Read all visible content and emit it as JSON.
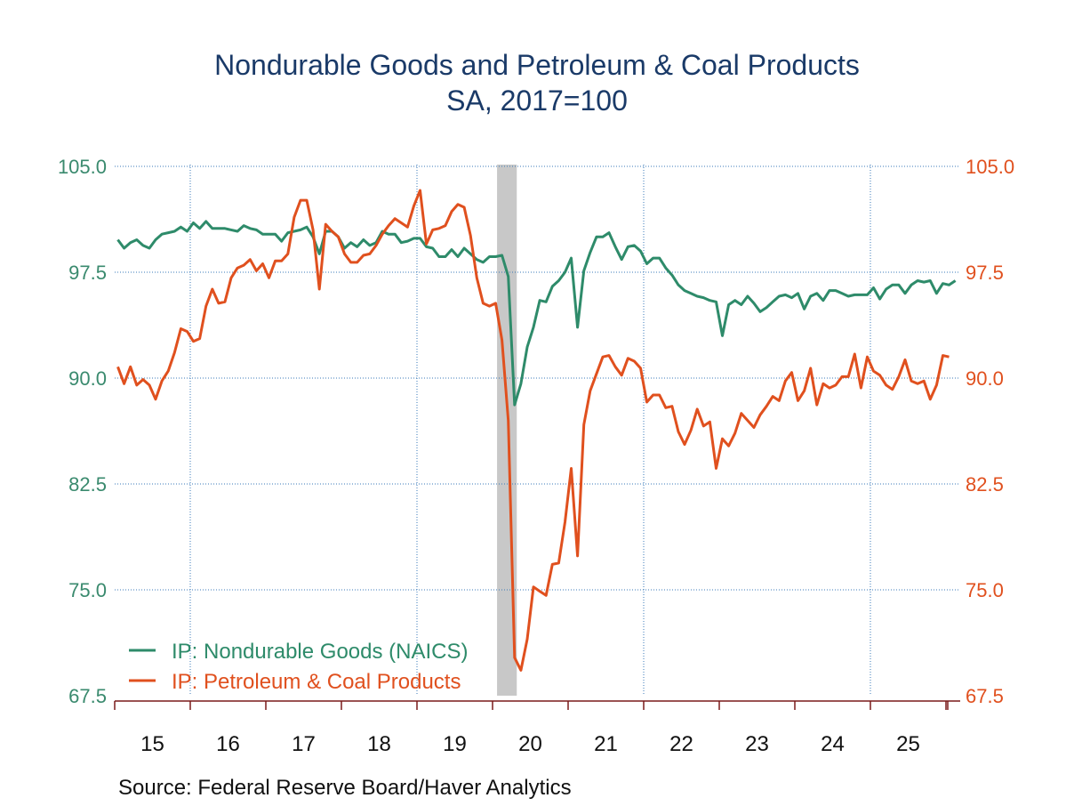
{
  "chart_data": {
    "type": "line",
    "title": "Nondurable Goods and Petroleum & Coal Products",
    "subtitle": "SA, 2017=100",
    "source": "Source:  Federal Reserve Board/Haver Analytics",
    "xlabel": "",
    "ylabel_left": "",
    "ylabel_right": "",
    "x_start": "2015-01",
    "x_frequency": "monthly",
    "x_range_years": [
      2015,
      2026
    ],
    "x_tick_labels": [
      "15",
      "16",
      "17",
      "18",
      "19",
      "20",
      "21",
      "22",
      "23",
      "24",
      "25"
    ],
    "ylim_left": [
      67.5,
      105.0
    ],
    "ylim_right": [
      67.5,
      105.0
    ],
    "y_ticks_left": [
      "105.0",
      "97.5",
      "90.0",
      "82.5",
      "75.0",
      "67.5"
    ],
    "y_ticks_right": [
      "105.0",
      "97.5",
      "90.0",
      "82.5",
      "75.0",
      "67.5"
    ],
    "grid": true,
    "legend_position": "bottom-left",
    "recession_shading": {
      "start": "2020-02",
      "end": "2020-04",
      "color": "#c8c8c8"
    },
    "colors": {
      "title": "#1a3a68",
      "left_axis": "#3a8a6e",
      "right_axis": "#e0501e",
      "grid": "#3a7ab8",
      "axis_line": "#7a1a1a"
    },
    "series": [
      {
        "name": "IP: Nondurable Goods (NAICS)",
        "axis": "left",
        "color": "#2e8b6a",
        "values": [
          99.8,
          99.2,
          99.6,
          99.8,
          99.4,
          99.2,
          99.8,
          100.2,
          100.3,
          100.4,
          100.7,
          100.4,
          101.0,
          100.6,
          101.1,
          100.6,
          100.6,
          100.6,
          100.5,
          100.4,
          100.8,
          100.6,
          100.5,
          100.2,
          100.2,
          100.2,
          99.7,
          100.3,
          100.4,
          100.5,
          100.7,
          100.0,
          98.8,
          100.4,
          100.4,
          100.0,
          99.2,
          99.6,
          99.3,
          99.8,
          99.4,
          99.6,
          100.4,
          100.2,
          100.2,
          99.6,
          99.7,
          99.9,
          99.9,
          99.3,
          99.2,
          98.6,
          98.6,
          99.1,
          98.6,
          99.2,
          98.8,
          98.4,
          98.2,
          98.6,
          98.6,
          98.7,
          97.2,
          88.1,
          89.6,
          92.2,
          93.6,
          95.5,
          95.4,
          96.5,
          96.9,
          97.5,
          98.5,
          93.6,
          97.6,
          98.9,
          100.0,
          100.0,
          100.3,
          99.3,
          98.4,
          99.3,
          99.4,
          99.0,
          98.1,
          98.5,
          98.5,
          97.8,
          97.3,
          96.6,
          96.2,
          96.0,
          95.8,
          95.7,
          95.5,
          95.4,
          93.0,
          95.2,
          95.5,
          95.2,
          95.8,
          95.3,
          94.7,
          95.0,
          95.4,
          95.8,
          95.9,
          95.7,
          96.0,
          94.9,
          95.8,
          96.0,
          95.5,
          96.2,
          96.2,
          96.0,
          95.8,
          95.9,
          95.9,
          95.9,
          96.4,
          95.6,
          96.3,
          96.6,
          96.6,
          96.0,
          96.6,
          96.9,
          96.8,
          96.9,
          96.0,
          96.7,
          96.6,
          96.9
        ]
      },
      {
        "name": "IP: Petroleum & Coal Products",
        "axis": "right",
        "color": "#e0501e",
        "values": [
          90.8,
          89.6,
          90.8,
          89.5,
          89.9,
          89.5,
          88.5,
          89.8,
          90.5,
          91.8,
          93.5,
          93.3,
          92.6,
          92.8,
          95.1,
          96.3,
          95.3,
          95.4,
          97.1,
          97.8,
          98.0,
          98.4,
          97.6,
          98.1,
          97.1,
          98.3,
          98.3,
          98.8,
          101.4,
          102.6,
          102.6,
          100.5,
          96.3,
          100.9,
          100.4,
          100.0,
          98.8,
          98.2,
          98.2,
          98.7,
          98.8,
          99.4,
          100.2,
          100.8,
          101.3,
          101.0,
          100.7,
          102.2,
          103.3,
          99.5,
          100.5,
          100.6,
          100.8,
          101.8,
          102.3,
          102.1,
          100.1,
          97.1,
          95.3,
          95.1,
          95.3,
          92.7,
          87.0,
          70.2,
          69.3,
          71.5,
          75.2,
          74.9,
          74.6,
          76.8,
          76.9,
          79.8,
          83.6,
          77.4,
          86.7,
          89.1,
          90.3,
          91.5,
          91.6,
          90.8,
          90.2,
          91.4,
          91.2,
          90.7,
          88.3,
          88.8,
          88.8,
          87.9,
          88.0,
          86.2,
          85.3,
          86.3,
          87.8,
          86.6,
          86.9,
          83.6,
          85.7,
          85.2,
          86.1,
          87.5,
          87.0,
          86.5,
          87.4,
          88.0,
          88.7,
          88.4,
          89.8,
          90.4,
          88.4,
          89.1,
          90.7,
          88.1,
          89.6,
          89.3,
          89.5,
          90.1,
          90.1,
          91.7,
          89.3,
          91.5,
          90.5,
          90.2,
          89.5,
          89.2,
          90.1,
          91.3,
          89.8,
          89.6,
          89.8,
          88.5,
          89.5,
          91.6,
          91.5
        ]
      }
    ]
  }
}
